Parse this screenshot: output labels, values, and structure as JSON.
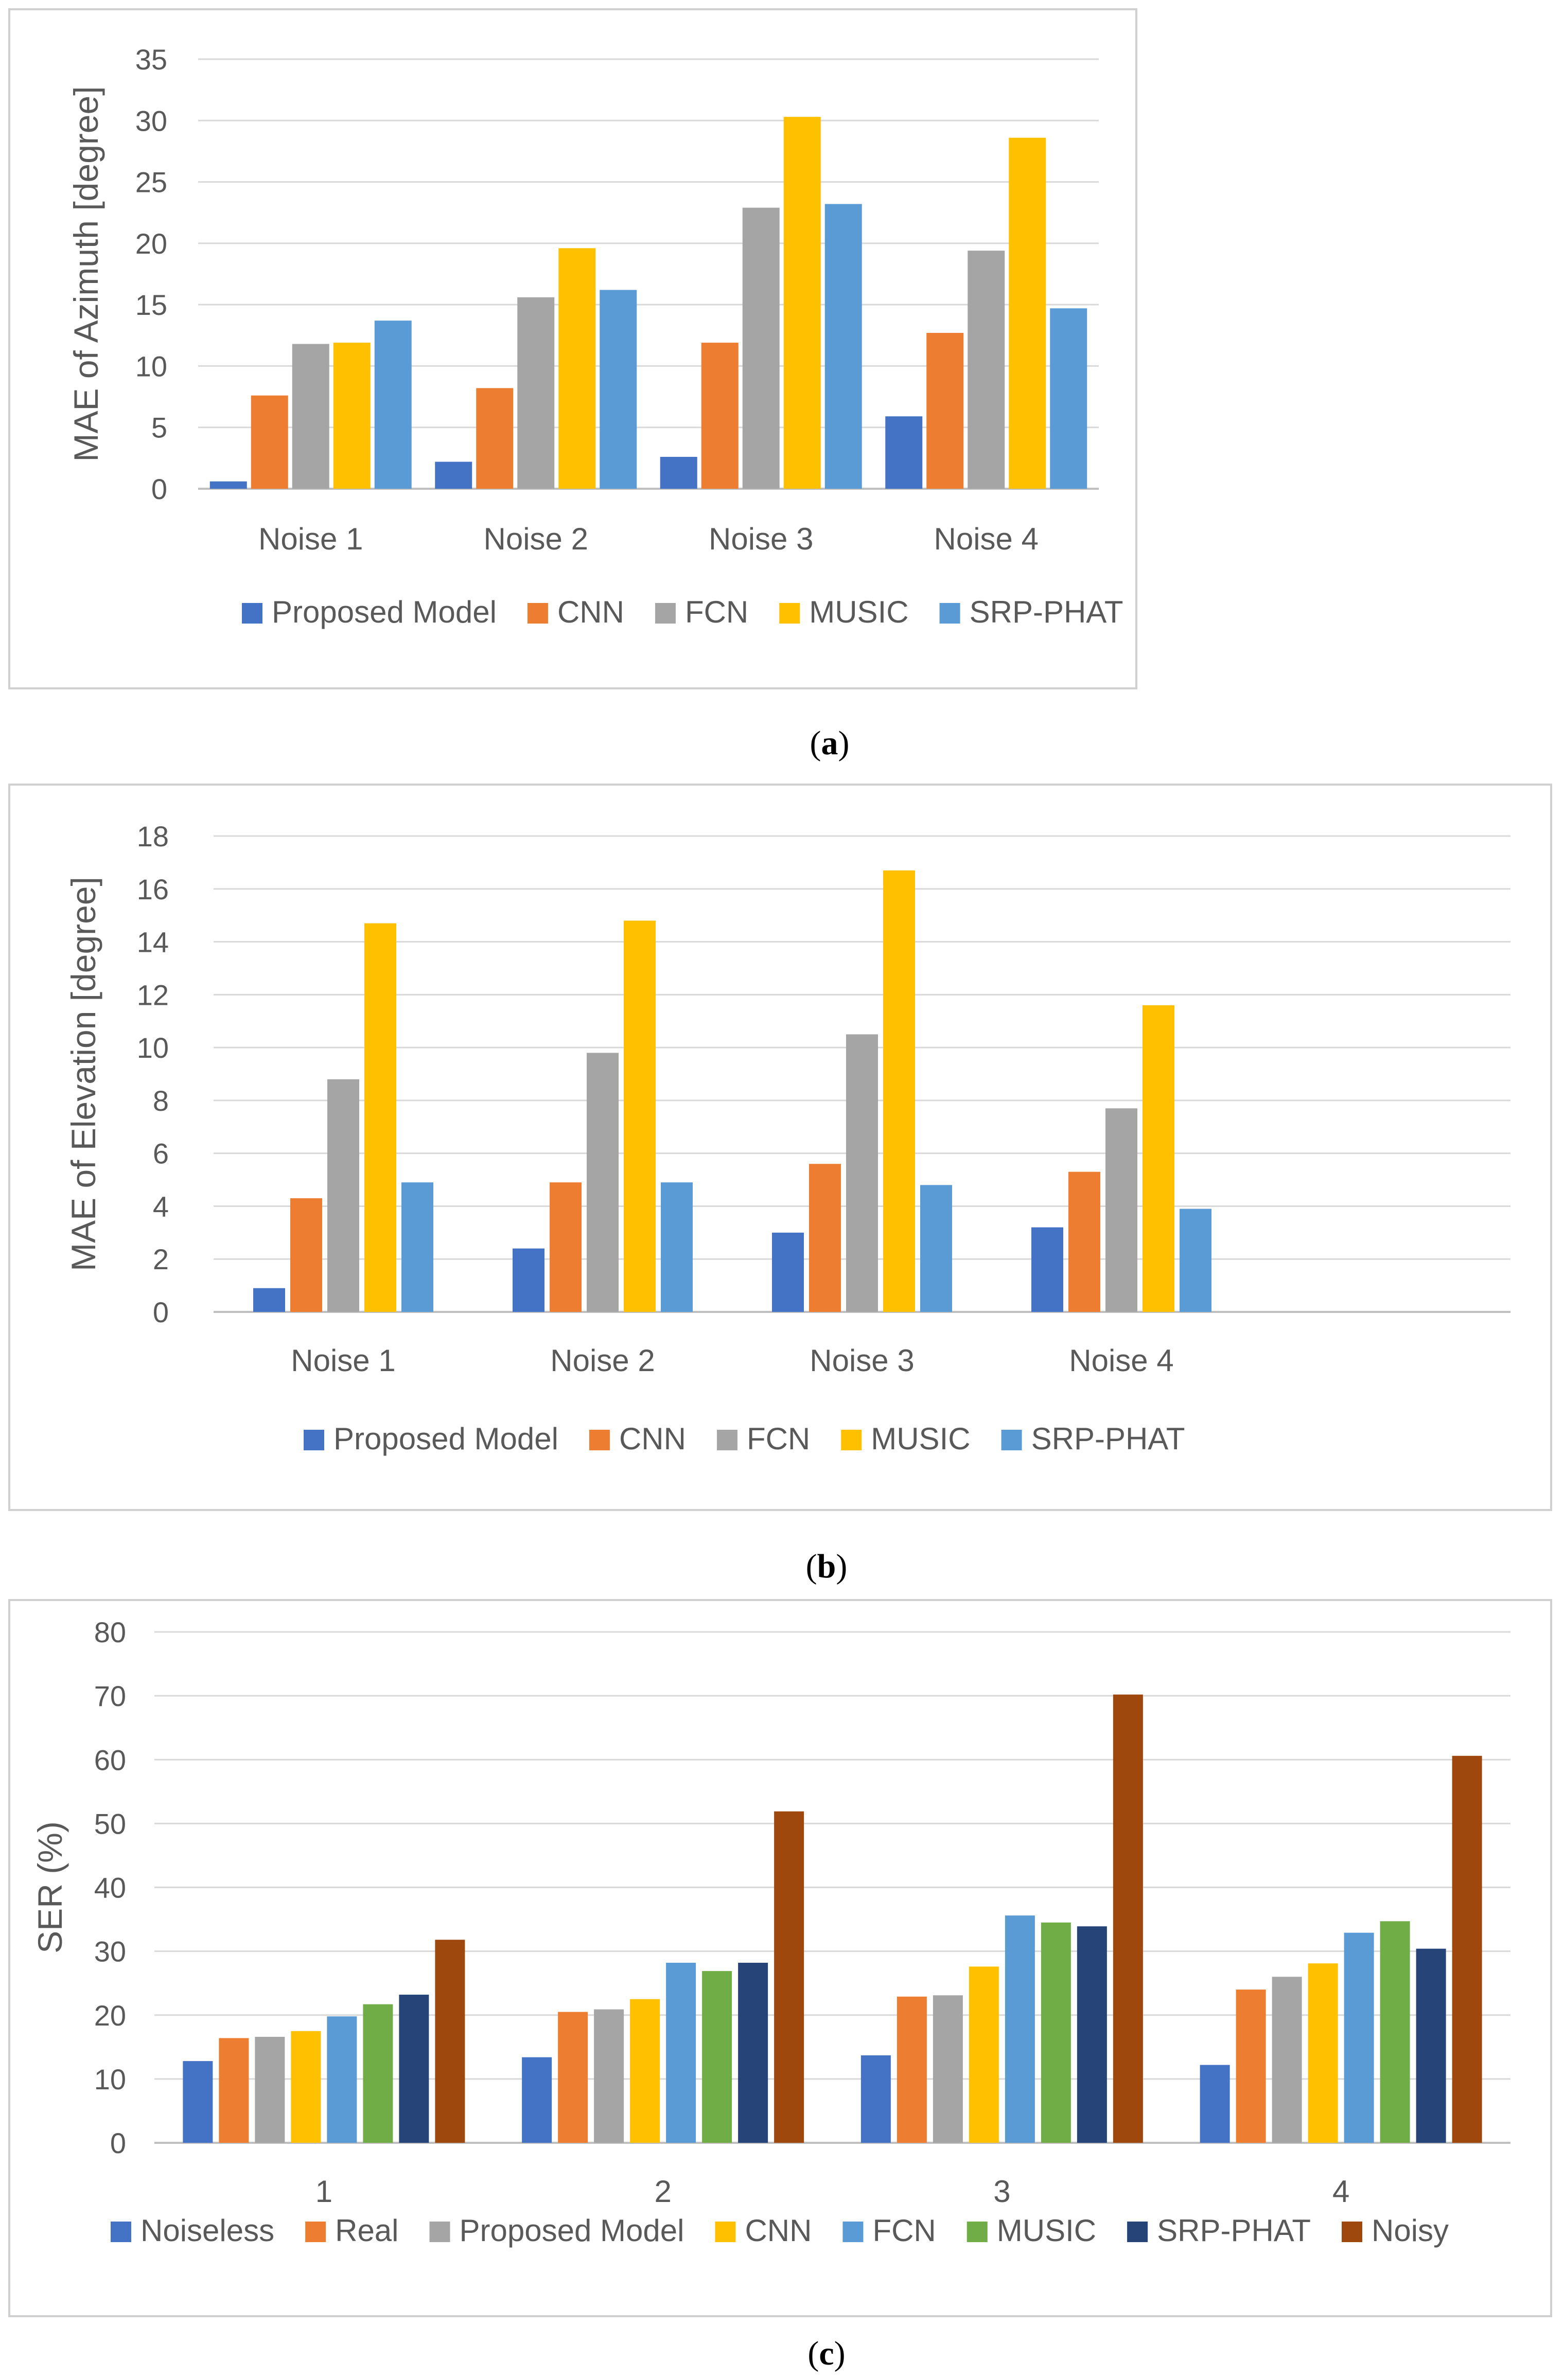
{
  "chart_data": [
    {
      "type": "bar",
      "caption_letter": "a",
      "ylabel": "MAE of Azimuth [degree]",
      "ylim": [
        0,
        35
      ],
      "ytick_step": 5,
      "categories": [
        "Noise 1",
        "Noise 2",
        "Noise 3",
        "Noise 4"
      ],
      "series": [
        {
          "name": "Proposed Model",
          "color": "#4472C4",
          "values": [
            0.6,
            2.2,
            2.6,
            5.9
          ]
        },
        {
          "name": "CNN",
          "color": "#ED7D31",
          "values": [
            7.6,
            8.2,
            11.9,
            12.7
          ]
        },
        {
          "name": "FCN",
          "color": "#A5A5A5",
          "values": [
            11.8,
            15.6,
            22.9,
            19.4
          ]
        },
        {
          "name": "MUSIC",
          "color": "#FFC000",
          "values": [
            11.9,
            19.6,
            30.3,
            28.6
          ]
        },
        {
          "name": "SRP-PHAT",
          "color": "#5B9BD5",
          "values": [
            13.7,
            16.2,
            23.2,
            14.7
          ]
        }
      ],
      "grid": true,
      "legend_position": "bottom"
    },
    {
      "type": "bar",
      "caption_letter": "b",
      "ylabel": "MAE of Elevation [degree]",
      "ylim": [
        0,
        18
      ],
      "ytick_step": 2,
      "categories": [
        "Noise 1",
        "Noise 2",
        "Noise 3",
        "Noise 4",
        ""
      ],
      "series": [
        {
          "name": "Proposed Model",
          "color": "#4472C4",
          "values": [
            0.9,
            2.4,
            3.0,
            3.2,
            null
          ]
        },
        {
          "name": "CNN",
          "color": "#ED7D31",
          "values": [
            4.3,
            4.9,
            5.6,
            5.3,
            null
          ]
        },
        {
          "name": "FCN",
          "color": "#A5A5A5",
          "values": [
            8.8,
            9.8,
            10.5,
            7.7,
            null
          ]
        },
        {
          "name": "MUSIC",
          "color": "#FFC000",
          "values": [
            14.7,
            14.8,
            16.7,
            11.6,
            null
          ]
        },
        {
          "name": "SRP-PHAT",
          "color": "#5B9BD5",
          "values": [
            4.9,
            4.9,
            4.8,
            3.9,
            null
          ]
        }
      ],
      "grid": true,
      "legend_position": "bottom"
    },
    {
      "type": "bar",
      "caption_letter": "c",
      "ylabel": "SER (%)",
      "ylim": [
        0,
        80
      ],
      "ytick_step": 10,
      "categories": [
        "1",
        "2",
        "3",
        "4"
      ],
      "series": [
        {
          "name": "Noiseless",
          "color": "#4472C4",
          "values": [
            12.8,
            13.4,
            13.7,
            12.2
          ]
        },
        {
          "name": "Real",
          "color": "#ED7D31",
          "values": [
            16.4,
            20.5,
            22.9,
            24.0
          ]
        },
        {
          "name": "Proposed Model",
          "color": "#A5A5A5",
          "values": [
            16.6,
            20.9,
            23.1,
            26.0
          ]
        },
        {
          "name": "CNN",
          "color": "#FFC000",
          "values": [
            17.5,
            22.5,
            27.6,
            28.1
          ]
        },
        {
          "name": "FCN",
          "color": "#5B9BD5",
          "values": [
            19.8,
            28.2,
            35.6,
            32.9
          ]
        },
        {
          "name": "MUSIC",
          "color": "#70AD47",
          "values": [
            21.7,
            26.9,
            34.5,
            34.7
          ]
        },
        {
          "name": "SRP-PHAT",
          "color": "#264478",
          "values": [
            23.2,
            28.2,
            33.9,
            30.4
          ]
        },
        {
          "name": "Noisy",
          "color": "#9E480E",
          "values": [
            31.8,
            51.9,
            70.2,
            60.6
          ]
        }
      ],
      "grid": true,
      "legend_position": "bottom"
    }
  ]
}
